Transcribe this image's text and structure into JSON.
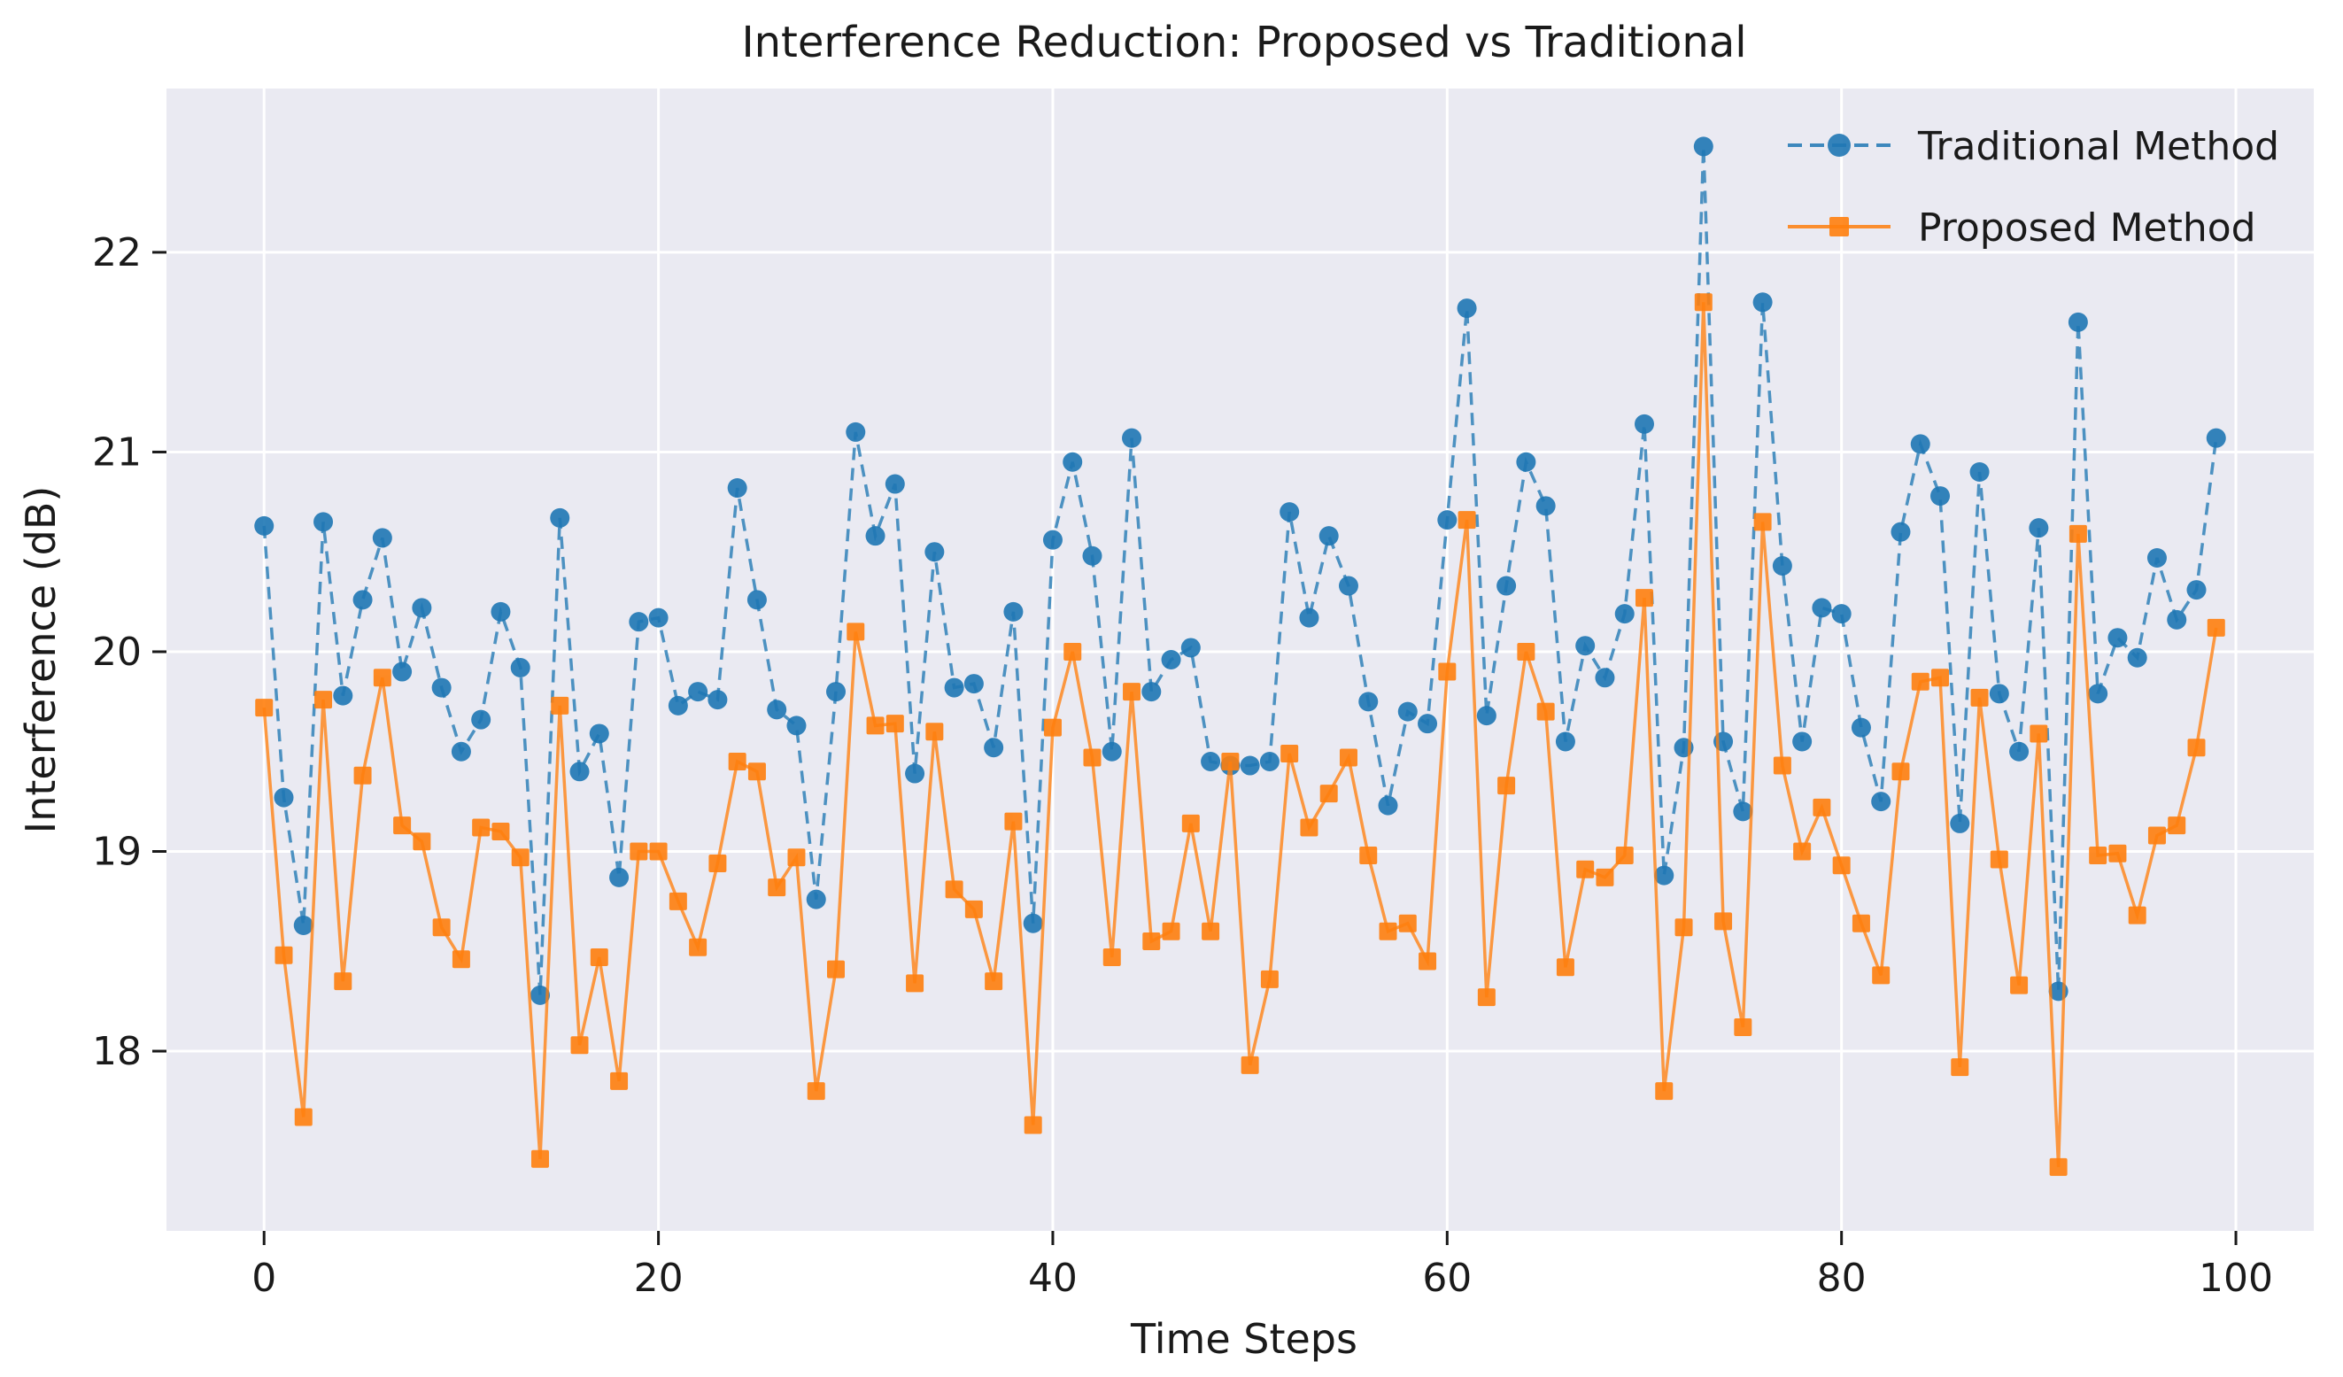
{
  "figure": {
    "background": "#ffffff",
    "plot_background": "#eaeaf2",
    "grid_color": "#ffffff",
    "text_color": "#1a1a1a"
  },
  "chart_data": {
    "type": "line",
    "title": "Interference Reduction: Proposed vs Traditional",
    "xlabel": "Time Steps",
    "ylabel": "Interference (dB)",
    "grid": true,
    "legend_position": "upper right",
    "xlim": [
      -4.95,
      103.95
    ],
    "ylim": [
      17.1,
      22.82
    ],
    "x_ticks": [
      0,
      20,
      40,
      60,
      80,
      100
    ],
    "y_ticks": [
      18,
      19,
      20,
      21,
      22
    ],
    "x": [
      0,
      1,
      2,
      3,
      4,
      5,
      6,
      7,
      8,
      9,
      10,
      11,
      12,
      13,
      14,
      15,
      16,
      17,
      18,
      19,
      20,
      21,
      22,
      23,
      24,
      25,
      26,
      27,
      28,
      29,
      30,
      31,
      32,
      33,
      34,
      35,
      36,
      37,
      38,
      39,
      40,
      41,
      42,
      43,
      44,
      45,
      46,
      47,
      48,
      49,
      50,
      51,
      52,
      53,
      54,
      55,
      56,
      57,
      58,
      59,
      60,
      61,
      62,
      63,
      64,
      65,
      66,
      67,
      68,
      69,
      70,
      71,
      72,
      73,
      74,
      75,
      76,
      77,
      78,
      79,
      80,
      81,
      82,
      83,
      84,
      85,
      86,
      87,
      88,
      89,
      90,
      91,
      92,
      93,
      94,
      95,
      96,
      97,
      98,
      99
    ],
    "series": [
      {
        "name": "Traditional Method",
        "color": "#1f77b4",
        "line_style": "dashed",
        "marker": "circle",
        "values": [
          20.63,
          19.27,
          18.63,
          20.65,
          19.78,
          20.26,
          20.57,
          19.9,
          20.22,
          19.82,
          19.5,
          19.66,
          20.2,
          19.92,
          18.28,
          20.67,
          19.4,
          19.59,
          18.87,
          20.15,
          20.17,
          19.73,
          19.8,
          19.76,
          20.82,
          20.26,
          19.71,
          19.63,
          18.76,
          19.8,
          21.1,
          20.58,
          20.84,
          19.39,
          20.5,
          19.82,
          19.84,
          19.52,
          20.2,
          18.64,
          20.56,
          20.95,
          20.48,
          19.5,
          21.07,
          19.8,
          19.96,
          20.02,
          19.45,
          19.43,
          19.43,
          19.45,
          20.7,
          20.17,
          20.58,
          20.33,
          19.75,
          19.23,
          19.7,
          19.64,
          20.66,
          21.72,
          19.68,
          20.33,
          20.95,
          20.73,
          19.55,
          20.03,
          19.87,
          20.19,
          21.14,
          18.88,
          19.52,
          22.53,
          19.55,
          19.2,
          21.75,
          20.43,
          19.55,
          20.22,
          20.19,
          19.62,
          19.25,
          20.6,
          21.04,
          20.78,
          19.14,
          20.9,
          19.79,
          19.5,
          20.62,
          18.3,
          21.65,
          19.79,
          20.07,
          19.97,
          20.47,
          20.16,
          20.31,
          21.07
        ]
      },
      {
        "name": "Proposed Method",
        "color": "#ff7f0e",
        "line_style": "solid",
        "marker": "square",
        "values": [
          19.72,
          18.48,
          17.67,
          19.76,
          18.35,
          19.38,
          19.87,
          19.13,
          19.05,
          18.62,
          18.46,
          19.12,
          19.1,
          18.97,
          17.46,
          19.73,
          18.03,
          18.47,
          17.85,
          19.0,
          19.0,
          18.75,
          18.52,
          18.94,
          19.45,
          19.4,
          18.82,
          18.97,
          17.8,
          18.41,
          20.1,
          19.63,
          19.64,
          18.34,
          19.6,
          18.81,
          18.71,
          18.35,
          19.15,
          17.63,
          19.62,
          20.0,
          19.47,
          18.47,
          19.8,
          18.55,
          18.6,
          19.14,
          18.6,
          19.45,
          17.93,
          18.36,
          19.49,
          19.12,
          19.29,
          19.47,
          18.98,
          18.6,
          18.64,
          18.45,
          19.9,
          20.66,
          18.27,
          19.33,
          20.0,
          19.7,
          18.42,
          18.91,
          18.87,
          18.98,
          20.27,
          17.8,
          18.62,
          21.75,
          18.65,
          18.12,
          20.65,
          19.43,
          19.0,
          19.22,
          18.93,
          18.64,
          18.38,
          19.4,
          19.85,
          19.87,
          17.92,
          19.77,
          18.96,
          18.33,
          19.59,
          17.42,
          20.59,
          18.98,
          18.99,
          18.68,
          19.08,
          19.13,
          19.52,
          20.12
        ]
      }
    ]
  }
}
